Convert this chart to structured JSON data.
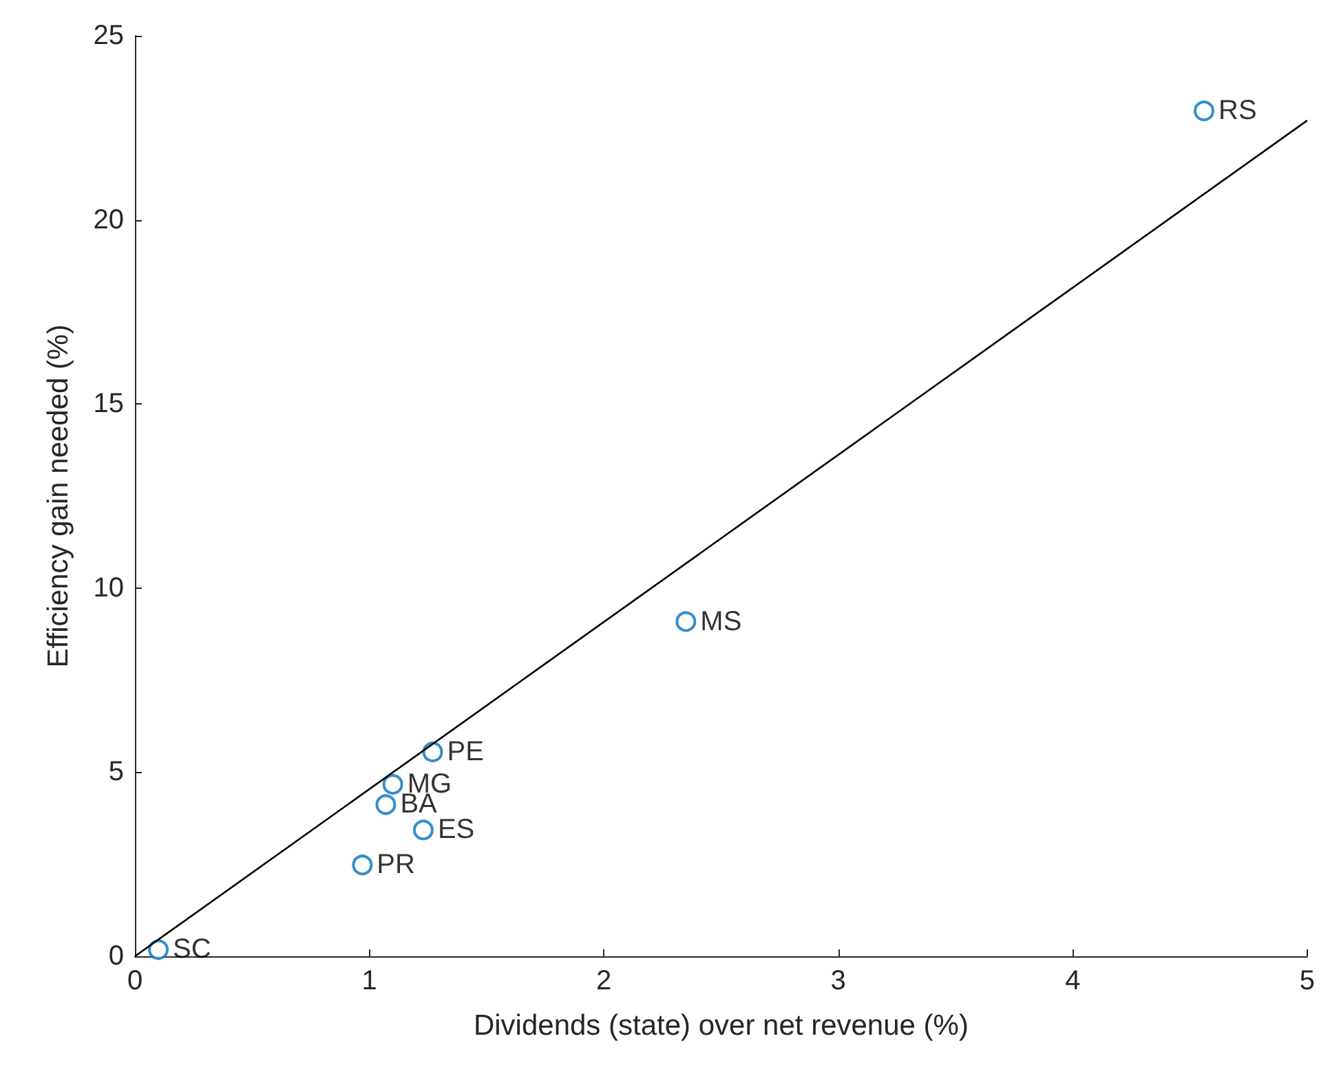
{
  "chart_data": {
    "type": "scatter",
    "xlabel": "Dividends (state) over net revenue (%)",
    "ylabel": "Efficiency gain needed (%)",
    "xlim": [
      0,
      5
    ],
    "ylim": [
      0,
      25
    ],
    "xticks": [
      0,
      1,
      2,
      3,
      4,
      5
    ],
    "yticks": [
      0,
      5,
      10,
      15,
      20,
      25
    ],
    "grid": false,
    "series": [
      {
        "color": "#0072bd",
        "marker": "circle",
        "x": [
          4.56,
          2.35,
          1.27,
          1.1,
          1.07,
          1.23,
          0.97,
          0.1
        ],
        "values": [
          22.96,
          9.09,
          5.55,
          4.67,
          4.12,
          3.43,
          2.48,
          0.18
        ],
        "value_labels": [
          "RS",
          "MS",
          "PE",
          "MG",
          "BA",
          "ES",
          "PR",
          "SC"
        ]
      },
      {
        "type": "line",
        "color": "#000000",
        "marker": "none",
        "line_style": "solid",
        "x": [
          0,
          5
        ],
        "values": [
          0,
          22.7
        ]
      }
    ]
  }
}
